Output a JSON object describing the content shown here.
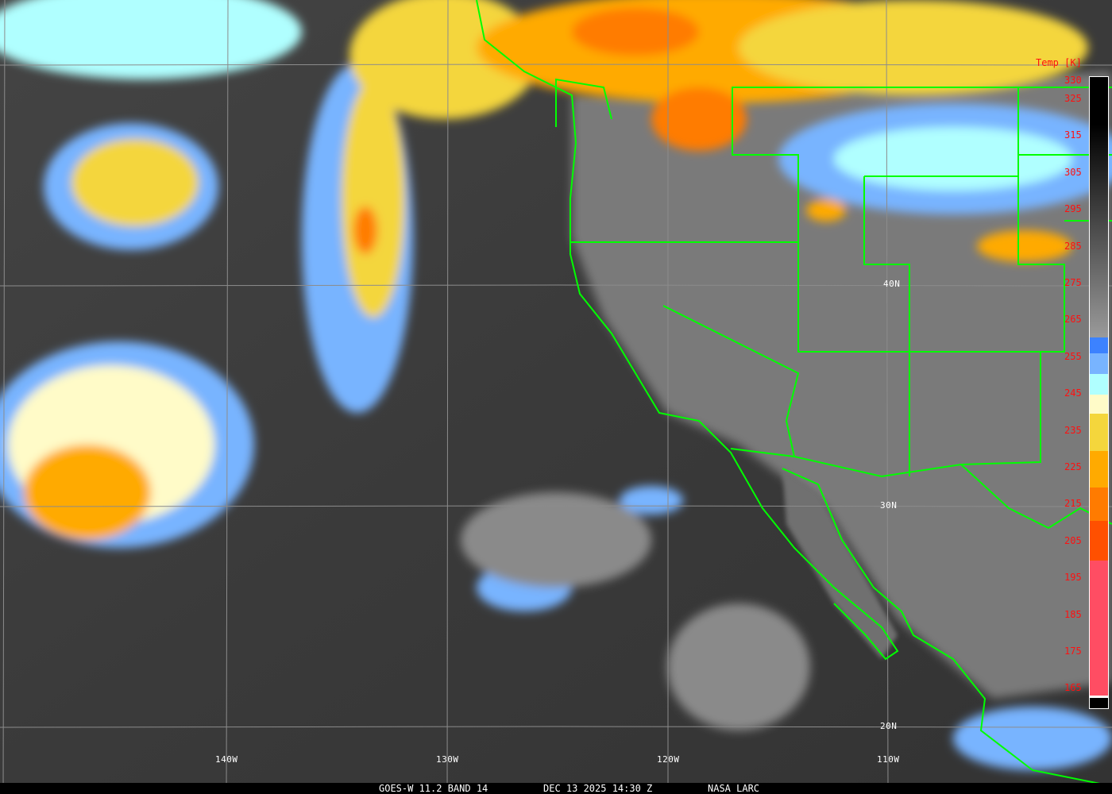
{
  "caption": {
    "satellite": "GOES-W 11.2 BAND 14",
    "datetime": "DEC 13 2025 14:30 Z",
    "credit": "NASA LARC"
  },
  "colorbar": {
    "title": "Temp [K]",
    "ticks": [
      "330",
      "325",
      "315",
      "305",
      "295",
      "285",
      "275",
      "265",
      "255",
      "245",
      "235",
      "225",
      "215",
      "205",
      "195",
      "185",
      "175",
      "165"
    ],
    "colors": {
      "cold_pink": "#ff4d63",
      "red_orange": "#ff5000",
      "dark_orange": "#ff7b00",
      "orange": "#ffaa00",
      "yellow": "#f4d63c",
      "cream": "#fffbc8",
      "light_cyan": "#b0ffff",
      "light_blue": "#78b4ff",
      "blue": "#3c82ff"
    }
  },
  "grid": {
    "longitudes": [
      "140W",
      "130W",
      "120W",
      "110W"
    ],
    "latitudes": [
      "40N",
      "30N",
      "20N"
    ]
  },
  "overlay_color": "#00ff00"
}
